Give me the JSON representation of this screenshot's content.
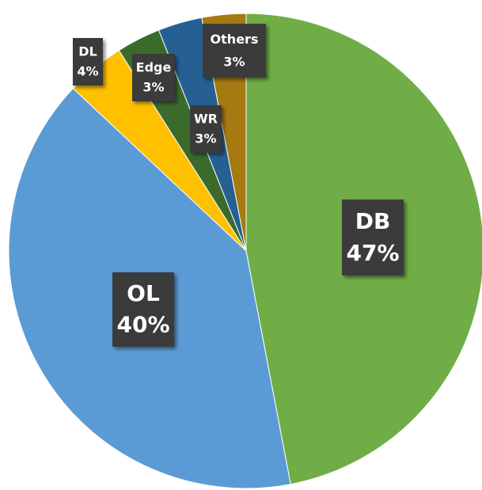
{
  "chart_data": {
    "type": "pie",
    "categories": [
      "DB",
      "OL",
      "DL",
      "Edge",
      "WR",
      "Others"
    ],
    "values": [
      47,
      40,
      4,
      3,
      3,
      3
    ],
    "value_labels": [
      "47%",
      "40%",
      "4%",
      "3%",
      "3%",
      "3%"
    ],
    "colors": [
      "#70ad47",
      "#5b9bd5",
      "#ffc000",
      "#3b6b2b",
      "#265f92",
      "#a57a10"
    ]
  }
}
